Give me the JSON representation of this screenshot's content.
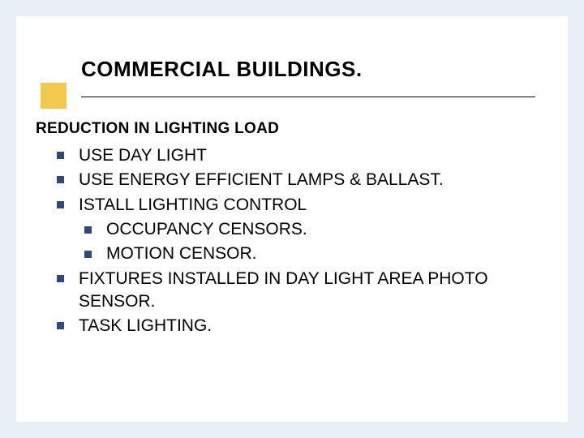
{
  "background_color": "#e8f0f5",
  "slide_bg": "#ffffff",
  "accent_color": "#f2c94c",
  "bullet_color": "#2d4a7a",
  "title": "COMMERCIAL BUILDINGS.",
  "title_fontsize": 26,
  "subtitle": "REDUCTION IN LIGHTING LOAD",
  "subtitle_fontsize": 19,
  "body_fontsize": 21,
  "items": [
    {
      "text": "USE DAY LIGHT"
    },
    {
      "text": "USE ENERGY EFFICIENT LAMPS & BALLAST."
    },
    {
      "text": "ISTALL LIGHTING CONTROL",
      "sub": [
        {
          "text": "OCCUPANCY CENSORS."
        },
        {
          "text": "MOTION CENSOR."
        }
      ]
    },
    {
      "text": "FIXTURES INSTALLED IN DAY LIGHT AREA PHOTO SENSOR."
    },
    {
      "text": "TASK LIGHTING."
    }
  ]
}
